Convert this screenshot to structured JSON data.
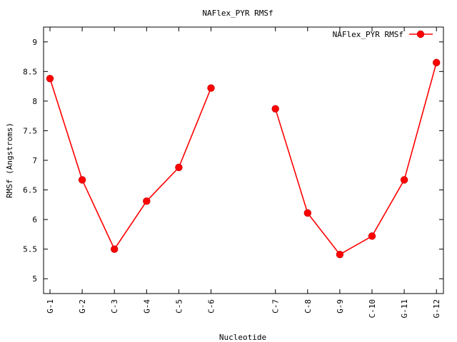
{
  "chart_data": {
    "type": "line",
    "title": "NAFlex_PYR RMSf",
    "xlabel": "Nucleotide",
    "ylabel": "RMSf (Angstroms)",
    "categories": [
      "G-1",
      "G-2",
      "C-3",
      "G-4",
      "C-5",
      "C-6",
      "",
      "C-7",
      "C-8",
      "G-9",
      "C-10",
      "G-11",
      "G-12"
    ],
    "ylim": [
      4.75,
      9.25
    ],
    "yticks": [
      5,
      5.5,
      6,
      6.5,
      7,
      7.5,
      8,
      8.5,
      9
    ],
    "ytick_labels": [
      "5",
      "5.5",
      "6",
      "6.5",
      "7",
      "7.5",
      "8",
      "8.5",
      "9"
    ],
    "grid": false,
    "legend_position": "top-right",
    "series": [
      {
        "name": "NAFlex_PYR RMSf",
        "color": "#ff0000",
        "values": [
          8.38,
          6.67,
          5.5,
          6.31,
          6.88,
          8.22,
          null,
          7.87,
          6.11,
          5.41,
          5.72,
          6.67,
          8.65
        ]
      }
    ]
  }
}
